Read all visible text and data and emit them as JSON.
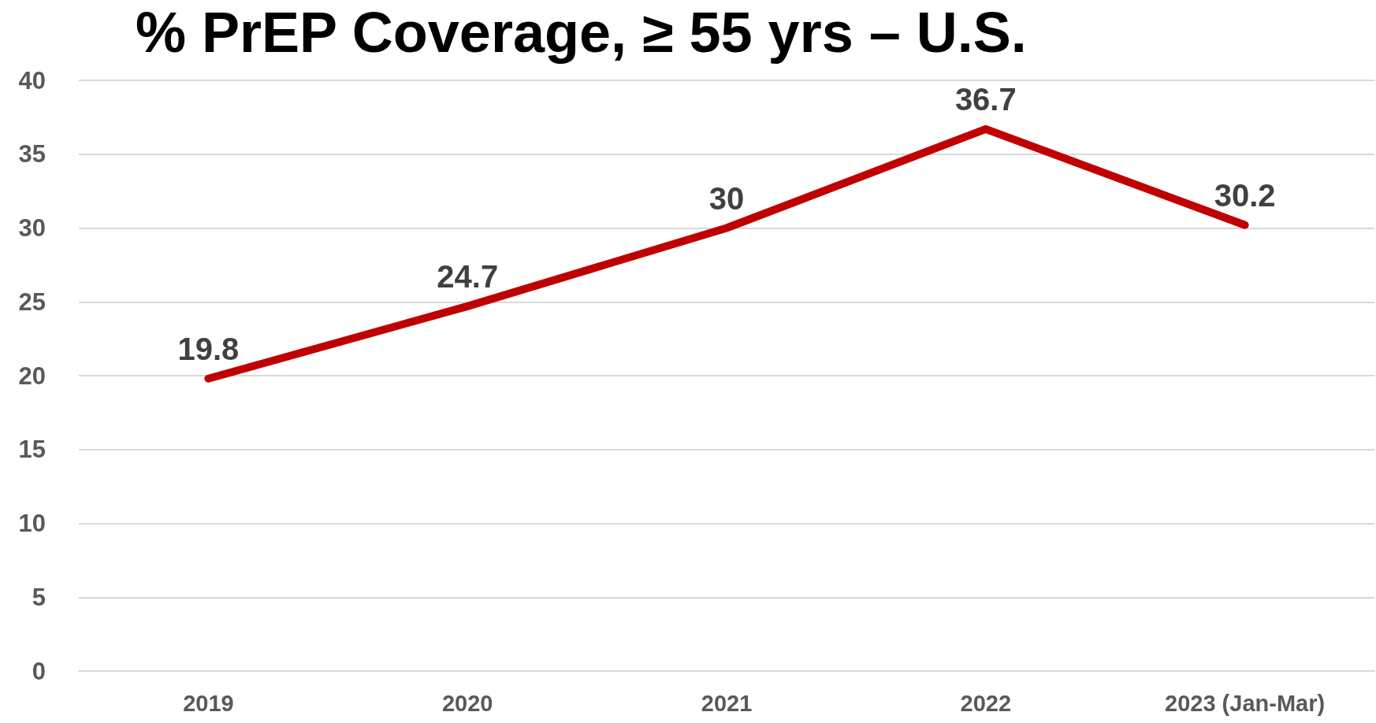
{
  "chart_data": {
    "type": "line",
    "title": "% PrEP Coverage, ≥ 55 yrs – U.S.",
    "categories": [
      "2019",
      "2020",
      "2021",
      "2022",
      "2023 (Jan-Mar)"
    ],
    "series": [
      {
        "color": "#c00000",
        "values": [
          19.8,
          24.7,
          30,
          36.7,
          30.2
        ]
      }
    ],
    "ylim": [
      0,
      40
    ],
    "yticks": [
      0,
      5,
      10,
      15,
      20,
      25,
      30,
      35,
      40
    ],
    "grid": "y",
    "data_labels": true,
    "marker": "none",
    "line_style": "solid"
  }
}
